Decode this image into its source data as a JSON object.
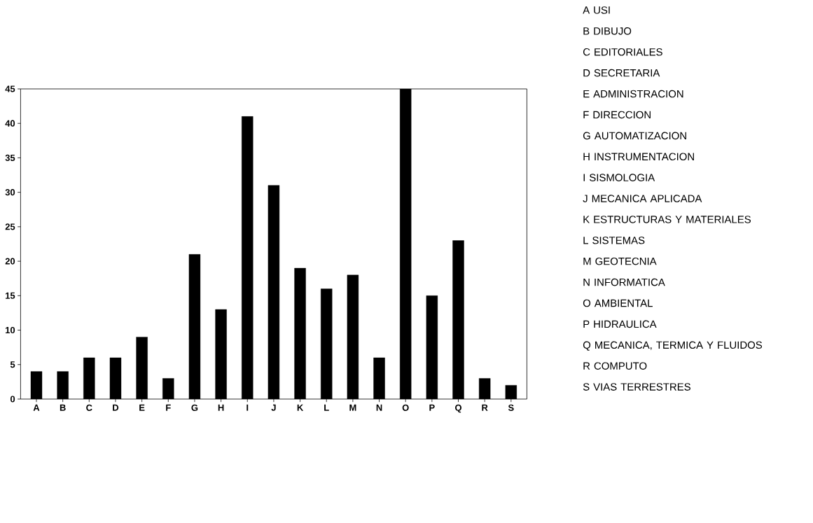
{
  "chart_data": {
    "type": "bar",
    "categories": [
      "A",
      "B",
      "C",
      "D",
      "E",
      "F",
      "G",
      "H",
      "I",
      "J",
      "K",
      "L",
      "M",
      "N",
      "O",
      "P",
      "Q",
      "R",
      "S"
    ],
    "values": [
      4,
      4,
      6,
      6,
      9,
      3,
      21,
      13,
      41,
      31,
      19,
      16,
      18,
      6,
      45,
      15,
      23,
      3,
      2
    ],
    "color": "#000000",
    "ylim": [
      0,
      45
    ],
    "yticks": [
      0,
      5,
      10,
      15,
      20,
      25,
      30,
      35,
      40,
      45
    ],
    "grid": false,
    "annotations": [
      "A USI",
      "B DIBUJO",
      "C EDITORIALES",
      "D SECRETARIA",
      "E ADMINISTRACION",
      "F DIRECCION",
      "G AUTOMATIZACION",
      "H INSTRUMENTACION",
      "I SISMOLOGIA",
      "J MECANICA APLICADA",
      "K ESTRUCTURAS Y MATERIALES",
      "L SISTEMAS",
      "M GEOTECNIA",
      "N INFORMATICA",
      "O AMBIENTAL",
      "P HIDRAULICA",
      "Q MECANICA, TERMICA Y FLUIDOS",
      "R COMPUTO",
      "S VIAS TERRESTRES"
    ]
  }
}
